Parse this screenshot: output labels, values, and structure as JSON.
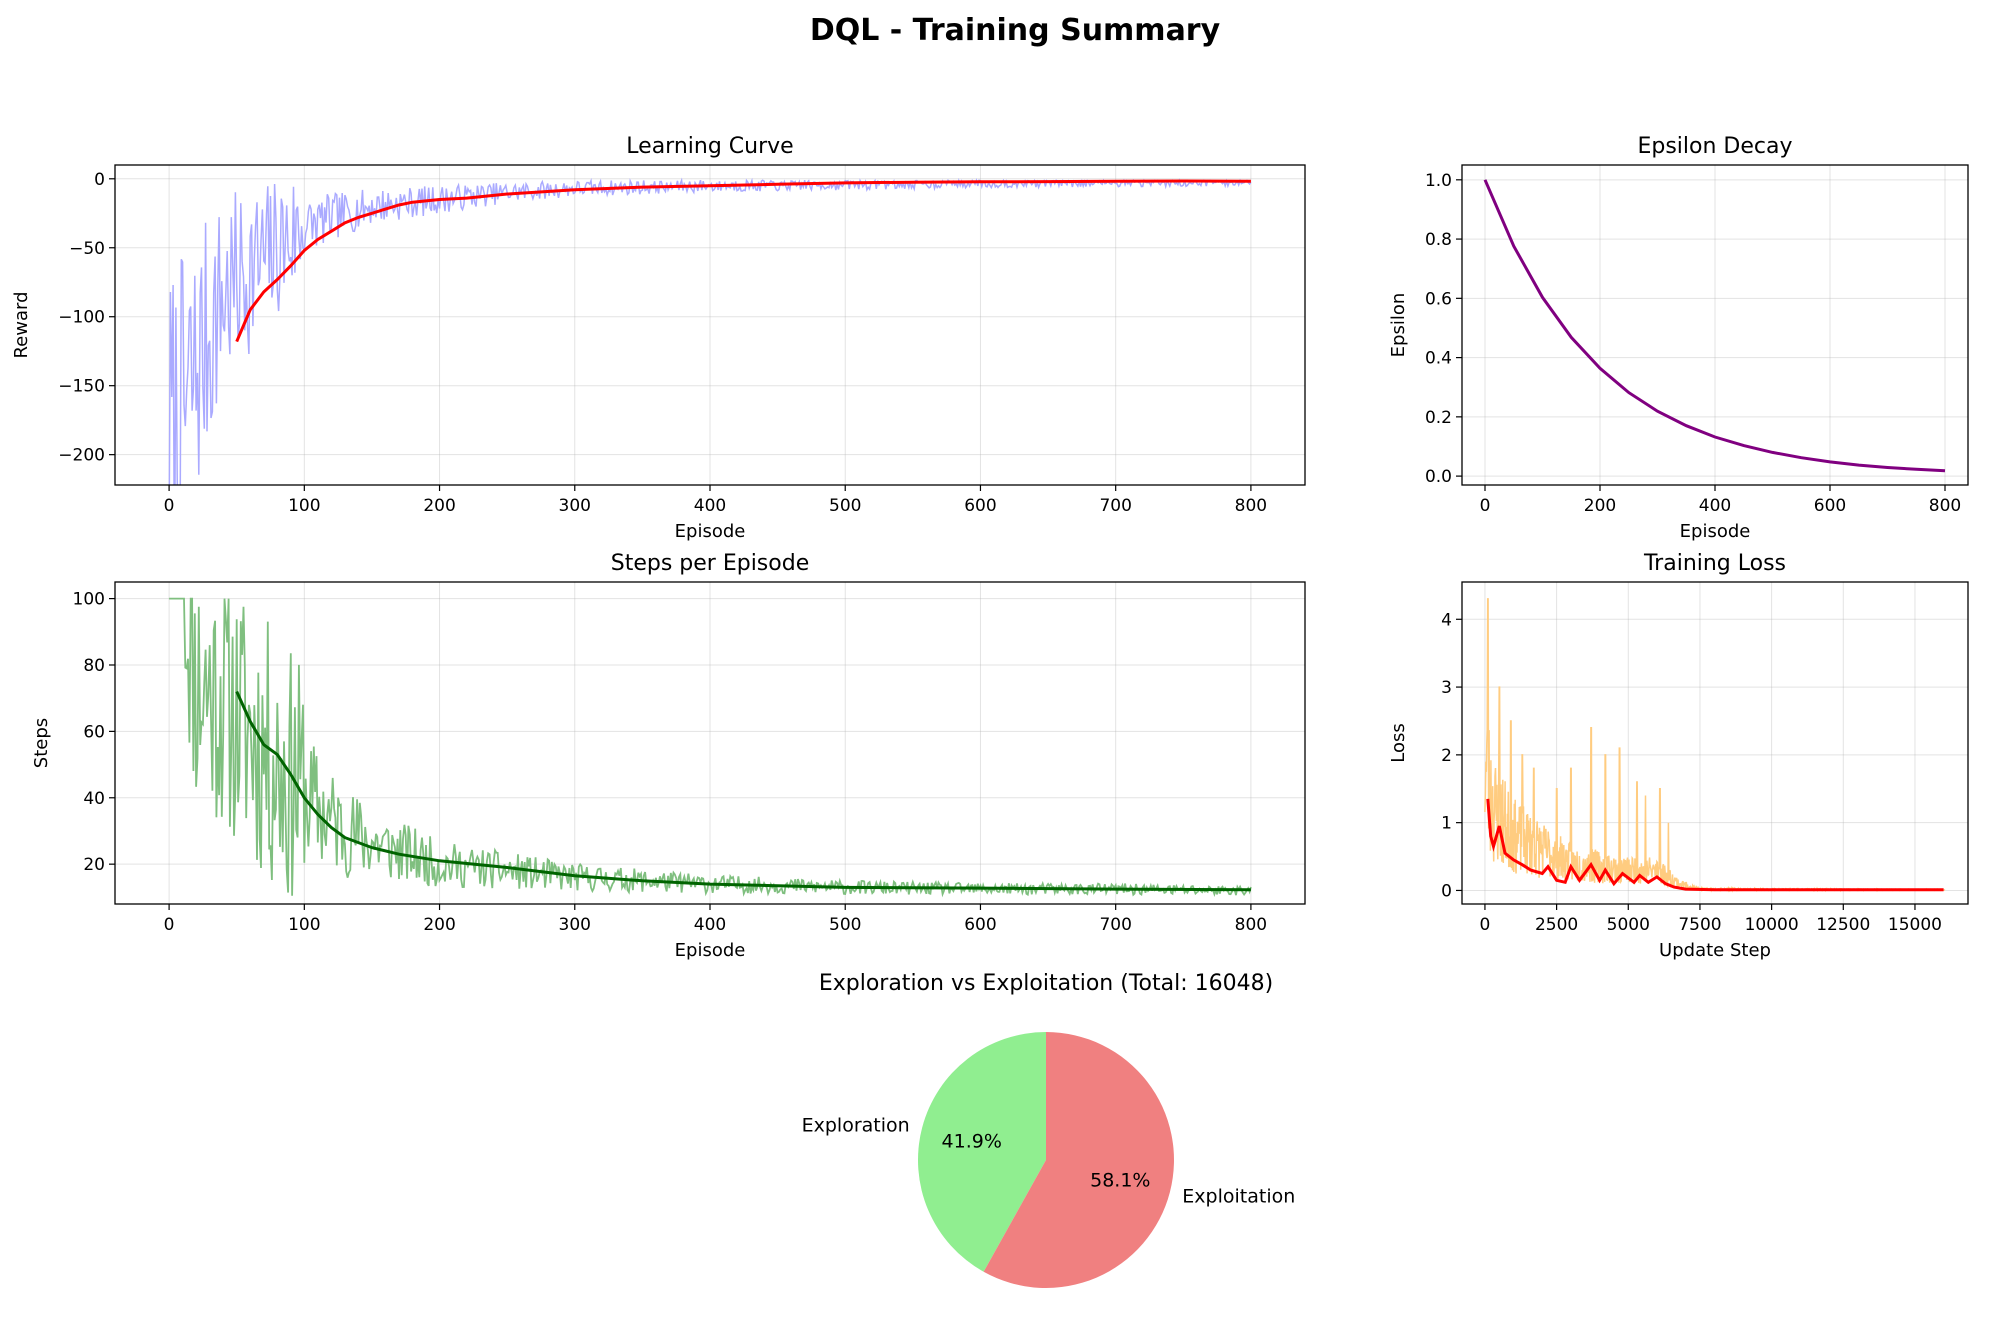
{
  "figure": {
    "suptitle": "DQL - Training Summary"
  },
  "chart_data": [
    {
      "id": "learning",
      "type": "line",
      "title": "Learning Curve",
      "xlabel": "Episode",
      "ylabel": "Reward",
      "xlim": [
        -40,
        840
      ],
      "ylim": [
        -222,
        10
      ],
      "xticks": [
        0,
        100,
        200,
        300,
        400,
        500,
        600,
        700,
        800
      ],
      "yticks": [
        -200,
        -150,
        -100,
        -50,
        0
      ],
      "grid": true,
      "series": [
        {
          "role": "raw",
          "color": "#aaaaff",
          "x_range": [
            0,
            800
          ],
          "anchors": [
            [
              0,
              -190
            ],
            [
              10,
              -175
            ],
            [
              20,
              -140
            ],
            [
              30,
              -110
            ],
            [
              40,
              -85
            ],
            [
              50,
              -75
            ],
            [
              60,
              -65
            ],
            [
              70,
              -60
            ],
            [
              80,
              -50
            ],
            [
              100,
              -35
            ],
            [
              120,
              -28
            ],
            [
              150,
              -20
            ],
            [
              200,
              -15
            ],
            [
              250,
              -10
            ],
            [
              300,
              -7
            ],
            [
              400,
              -5
            ],
            [
              500,
              -4
            ],
            [
              600,
              -3
            ],
            [
              700,
              -2.5
            ],
            [
              800,
              -2
            ]
          ]
        },
        {
          "role": "moving_average",
          "color": "#ff0000",
          "points": [
            [
              50,
              -118
            ],
            [
              60,
              -95
            ],
            [
              70,
              -82
            ],
            [
              80,
              -73
            ],
            [
              90,
              -63
            ],
            [
              100,
              -52
            ],
            [
              110,
              -44
            ],
            [
              120,
              -38
            ],
            [
              130,
              -32
            ],
            [
              140,
              -28
            ],
            [
              150,
              -25
            ],
            [
              160,
              -22
            ],
            [
              170,
              -19
            ],
            [
              180,
              -17
            ],
            [
              200,
              -15
            ],
            [
              220,
              -14
            ],
            [
              250,
              -11
            ],
            [
              300,
              -8
            ],
            [
              350,
              -6
            ],
            [
              400,
              -5
            ],
            [
              450,
              -4
            ],
            [
              500,
              -3
            ],
            [
              550,
              -2.5
            ],
            [
              600,
              -2.2
            ],
            [
              650,
              -2
            ],
            [
              700,
              -1.8
            ],
            [
              750,
              -1.6
            ],
            [
              800,
              -1.8
            ]
          ]
        }
      ]
    },
    {
      "id": "epsilon",
      "type": "line",
      "title": "Epsilon Decay",
      "xlabel": "Episode",
      "ylabel": "Epsilon",
      "xlim": [
        -40,
        840
      ],
      "ylim": [
        -0.03,
        1.05
      ],
      "xticks": [
        0,
        200,
        400,
        600,
        800
      ],
      "yticks": [
        0.0,
        0.2,
        0.4,
        0.6,
        0.8,
        1.0
      ],
      "ytick_labels": [
        "0.0",
        "0.2",
        "0.4",
        "0.6",
        "0.8",
        "1.0"
      ],
      "grid": true,
      "series": [
        {
          "color": "#800080",
          "points": [
            [
              0,
              1.0
            ],
            [
              50,
              0.776
            ],
            [
              100,
              0.603
            ],
            [
              150,
              0.468
            ],
            [
              200,
              0.364
            ],
            [
              250,
              0.282
            ],
            [
              300,
              0.219
            ],
            [
              350,
              0.17
            ],
            [
              400,
              0.132
            ],
            [
              450,
              0.103
            ],
            [
              500,
              0.08
            ],
            [
              550,
              0.062
            ],
            [
              600,
              0.048
            ],
            [
              650,
              0.037
            ],
            [
              700,
              0.029
            ],
            [
              750,
              0.023
            ],
            [
              800,
              0.018
            ]
          ]
        }
      ]
    },
    {
      "id": "steps",
      "type": "line",
      "title": "Steps per Episode",
      "xlabel": "Episode",
      "ylabel": "Steps",
      "xlim": [
        -40,
        840
      ],
      "ylim": [
        8,
        105
      ],
      "xticks": [
        0,
        100,
        200,
        300,
        400,
        500,
        600,
        700,
        800
      ],
      "yticks": [
        20,
        40,
        60,
        80,
        100
      ],
      "grid": true,
      "series": [
        {
          "role": "raw",
          "color": "#7fbf7f",
          "x_range": [
            0,
            800
          ],
          "anchors": [
            [
              0,
              100
            ],
            [
              12,
              100
            ],
            [
              20,
              75
            ],
            [
              40,
              70
            ],
            [
              60,
              60
            ],
            [
              80,
              50
            ],
            [
              100,
              40
            ],
            [
              130,
              30
            ],
            [
              160,
              25
            ],
            [
              200,
              20
            ],
            [
              250,
              18
            ],
            [
              300,
              16
            ],
            [
              400,
              14
            ],
            [
              500,
              13
            ],
            [
              600,
              12.5
            ],
            [
              700,
              12.5
            ],
            [
              800,
              12
            ]
          ]
        },
        {
          "role": "moving_average",
          "color": "#006400",
          "points": [
            [
              50,
              72
            ],
            [
              60,
              63
            ],
            [
              70,
              56
            ],
            [
              80,
              53
            ],
            [
              90,
              47
            ],
            [
              100,
              40
            ],
            [
              110,
              35
            ],
            [
              120,
              31
            ],
            [
              130,
              28
            ],
            [
              150,
              25
            ],
            [
              170,
              23
            ],
            [
              200,
              21
            ],
            [
              250,
              19
            ],
            [
              300,
              16.5
            ],
            [
              350,
              15
            ],
            [
              400,
              14
            ],
            [
              450,
              13.5
            ],
            [
              500,
              13
            ],
            [
              600,
              12.8
            ],
            [
              700,
              12.5
            ],
            [
              800,
              12.3
            ]
          ]
        }
      ]
    },
    {
      "id": "loss",
      "type": "line",
      "title": "Training Loss",
      "xlabel": "Update Step",
      "ylabel": "Loss",
      "xlim": [
        -800,
        16850
      ],
      "ylim": [
        -0.2,
        4.55
      ],
      "xticks": [
        0,
        2500,
        5000,
        7500,
        10000,
        12500,
        15000
      ],
      "yticks": [
        0,
        1,
        2,
        3,
        4
      ],
      "grid": true,
      "series": [
        {
          "role": "raw",
          "color": "#ffcc80",
          "x_range": [
            0,
            16048
          ],
          "anchors": [
            [
              0,
              1.8
            ],
            [
              300,
              1.2
            ],
            [
              1000,
              0.8
            ],
            [
              2000,
              0.6
            ],
            [
              3000,
              0.4
            ],
            [
              4000,
              0.35
            ],
            [
              5000,
              0.3
            ],
            [
              6000,
              0.3
            ],
            [
              6800,
              0.1
            ],
            [
              7500,
              0.02
            ],
            [
              16048,
              0.01
            ]
          ],
          "peaks": [
            [
              100,
              4.3
            ],
            [
              500,
              3.0
            ],
            [
              900,
              2.5
            ],
            [
              1300,
              2.0
            ],
            [
              1700,
              1.8
            ],
            [
              2500,
              1.5
            ],
            [
              3000,
              1.8
            ],
            [
              3700,
              2.4
            ],
            [
              4200,
              2.0
            ],
            [
              4700,
              2.1
            ],
            [
              5300,
              1.6
            ],
            [
              5600,
              1.4
            ],
            [
              6100,
              1.5
            ],
            [
              6400,
              1.0
            ]
          ]
        },
        {
          "role": "moving_average",
          "color": "#ff0000",
          "points": [
            [
              100,
              1.35
            ],
            [
              200,
              0.8
            ],
            [
              300,
              0.65
            ],
            [
              500,
              0.95
            ],
            [
              700,
              0.55
            ],
            [
              1000,
              0.45
            ],
            [
              1300,
              0.38
            ],
            [
              1600,
              0.3
            ],
            [
              2000,
              0.25
            ],
            [
              2200,
              0.35
            ],
            [
              2500,
              0.15
            ],
            [
              2800,
              0.12
            ],
            [
              3000,
              0.35
            ],
            [
              3300,
              0.15
            ],
            [
              3700,
              0.38
            ],
            [
              4000,
              0.15
            ],
            [
              4200,
              0.3
            ],
            [
              4500,
              0.1
            ],
            [
              4800,
              0.25
            ],
            [
              5200,
              0.12
            ],
            [
              5400,
              0.22
            ],
            [
              5700,
              0.12
            ],
            [
              6000,
              0.2
            ],
            [
              6300,
              0.1
            ],
            [
              6600,
              0.05
            ],
            [
              7000,
              0.02
            ],
            [
              8000,
              0.01
            ],
            [
              16000,
              0.01
            ]
          ]
        }
      ]
    },
    {
      "id": "pie",
      "type": "pie",
      "title": "Exploration vs Exploitation (Total: 16048)",
      "labels": [
        "Exploration",
        "Exploitation"
      ],
      "values": [
        41.9,
        58.1
      ],
      "value_labels": [
        "41.9%",
        "58.1%"
      ],
      "colors": [
        "#90ee90",
        "#f08080"
      ],
      "start_angle_deg": 90
    }
  ]
}
